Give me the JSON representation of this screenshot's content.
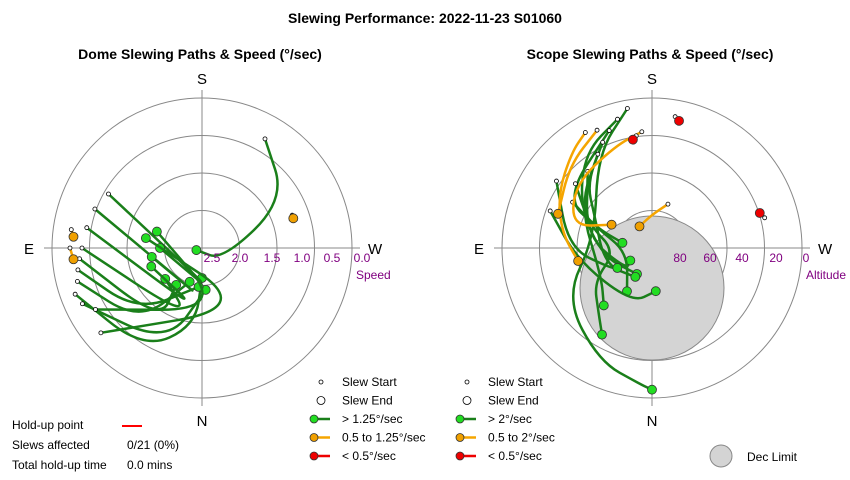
{
  "title": "Slewing Performance: 2022-11-23 S01060",
  "colors": {
    "fast": "#1a7f1a",
    "fast_marker": "#22dd22",
    "medium": "#f5a500",
    "medium_marker": "#f0a000",
    "slow": "#ee0000",
    "holdup": "#ff0000",
    "ring": "#888888",
    "axis_label": "#800080",
    "dec_limit": "#d4d4d4"
  },
  "chart_data": [
    {
      "type": "polar-path",
      "title": "Dome Slewing Paths & Speed (°/sec)",
      "directions": {
        "top": "S",
        "bottom": "N",
        "left": "E",
        "right": "W"
      },
      "radial_label": "Speed",
      "radial_ticks": [
        "2.5",
        "2.0",
        "1.5",
        "1.0",
        "0.5",
        "0.0"
      ],
      "radial_axis": "speed °/sec, 0.0 at outer ring, 2.5 at centre",
      "paths": [
        {
          "class": "fast",
          "points": [
            [
              0.25,
              -110
            ],
            [
              0.55,
              -150
            ],
            [
              1.2,
              -175
            ],
            [
              2.0,
              180
            ]
          ]
        },
        {
          "class": "fast",
          "points": [
            [
              0.3,
              -115
            ],
            [
              0.8,
              -160
            ],
            [
              1.8,
              175
            ]
          ]
        },
        {
          "class": "fast",
          "points": [
            [
              0.35,
              -105
            ],
            [
              0.9,
              -140
            ],
            [
              1.9,
              200
            ]
          ]
        },
        {
          "class": "fast",
          "points": [
            [
              0.4,
              -100
            ],
            [
              1.0,
              -135
            ],
            [
              1.85,
              185
            ]
          ]
        },
        {
          "class": "fast",
          "points": [
            [
              0.45,
              -95
            ],
            [
              1.1,
              -150
            ],
            [
              1.75,
              215
            ]
          ]
        },
        {
          "class": "fast",
          "points": [
            [
              0.5,
              -90
            ],
            [
              1.3,
              -170
            ],
            [
              1.7,
              230
            ]
          ]
        },
        {
          "class": "fast",
          "points": [
            [
              0.55,
              -80
            ],
            [
              1.4,
              -180
            ],
            [
              1.6,
              250
            ]
          ]
        },
        {
          "class": "fast",
          "points": [
            [
              0.6,
              -70
            ],
            [
              1.5,
              -190
            ],
            [
              1.65,
              260
            ]
          ]
        },
        {
          "class": "fast",
          "points": [
            [
              0.7,
              -60
            ],
            [
              1.6,
              -200
            ],
            [
              1.8,
              270
            ]
          ]
        },
        {
          "class": "fast",
          "points": [
            [
              0.3,
              -130
            ],
            [
              1.2,
              -220
            ],
            [
              1.55,
              280
            ]
          ]
        },
        {
          "class": "fast",
          "points": [
            [
              0.45,
              -120
            ],
            [
              1.4,
              -200
            ],
            [
              1.7,
              290
            ]
          ]
        },
        {
          "class": "fast",
          "points": [
            [
              0.4,
              30
            ],
            [
              0.9,
              60
            ],
            [
              2.1,
              120
            ],
            [
              2.4,
              250
            ]
          ]
        },
        {
          "class": "medium",
          "points": [
            [
              0.3,
              -90
            ],
            [
              0.35,
              -95
            ]
          ]
        },
        {
          "class": "medium",
          "points": [
            [
              0.3,
              -82
            ],
            [
              0.35,
              -85
            ]
          ]
        },
        {
          "class": "medium",
          "points": [
            [
              0.9,
              70
            ],
            [
              0.9,
              72
            ]
          ]
        }
      ],
      "holdup": {
        "label": "Hold-up point",
        "slews_affected_label": "Slews affected",
        "slews_affected": "0/21 (0%)",
        "total_label": "Total hold-up time",
        "total": "0.0 mins"
      },
      "legend": [
        {
          "class": "start",
          "label": "Slew Start"
        },
        {
          "class": "end",
          "label": "Slew End"
        },
        {
          "class": "fast",
          "label": "> 1.25°/sec"
        },
        {
          "class": "medium",
          "label": "0.5 to 1.25°/sec"
        },
        {
          "class": "slow",
          "label": "< 0.5°/sec"
        }
      ]
    },
    {
      "type": "polar-path",
      "title": "Scope Slewing Paths & Speed (°/sec)",
      "directions": {
        "top": "S",
        "bottom": "N",
        "left": "E",
        "right": "W"
      },
      "radial_label": "Altitude",
      "radial_ticks": [
        "80",
        "60",
        "40",
        "20",
        "0"
      ],
      "radial_axis": "altitude degrees, 90 at centre, 0 at outer ring",
      "dec_limit": {
        "label": "Dec Limit",
        "center_alt": 66,
        "center_az": 0,
        "radius_deg": 18
      },
      "paths": [
        {
          "class": "fast",
          "points": [
            [
              5,
              -10
            ],
            [
              25,
              -30
            ],
            [
              55,
              -80
            ],
            [
              30,
              -120
            ],
            [
              15,
              -155
            ],
            [
              8,
              -175
            ],
            [
              5,
              180
            ]
          ]
        },
        {
          "class": "fast",
          "points": [
            [
              10,
              -15
            ],
            [
              20,
              -35
            ],
            [
              40,
              -60
            ],
            [
              60,
              -100
            ],
            [
              72,
              -150
            ]
          ]
        },
        {
          "class": "fast",
          "points": [
            [
              15,
              -20
            ],
            [
              30,
              -60
            ],
            [
              55,
              -70
            ],
            [
              72,
              -80
            ]
          ]
        },
        {
          "class": "fast",
          "points": [
            [
              20,
              -25
            ],
            [
              35,
              -45
            ],
            [
              50,
              -60
            ],
            [
              60,
              -110
            ],
            [
              70,
              -150
            ]
          ]
        },
        {
          "class": "fast",
          "points": [
            [
              25,
              -30
            ],
            [
              40,
              -60
            ],
            [
              55,
              -120
            ],
            [
              45,
              -140
            ]
          ]
        },
        {
          "class": "fast",
          "points": [
            [
              30,
              -40
            ],
            [
              50,
              -80
            ],
            [
              70,
              -130
            ],
            [
              75,
              -120
            ]
          ]
        },
        {
          "class": "fast",
          "points": [
            [
              30,
              -50
            ],
            [
              50,
              -70
            ],
            [
              68,
              -95
            ],
            [
              50,
              -120
            ],
            [
              40,
              -140
            ],
            [
              30,
              -150
            ]
          ]
        },
        {
          "class": "fast",
          "points": [
            [
              20,
              -55
            ],
            [
              40,
              -90
            ],
            [
              62,
              -115
            ],
            [
              66,
              -120
            ]
          ]
        },
        {
          "class": "fast",
          "points": [
            [
              35,
              -60
            ],
            [
              55,
              -70
            ],
            [
              75,
              -100
            ],
            [
              60,
              -150
            ]
          ]
        },
        {
          "class": "fast",
          "points": [
            [
              25,
              -70
            ],
            [
              45,
              -100
            ],
            [
              55,
              -160
            ],
            [
              64,
              175
            ]
          ]
        },
        {
          "class": "medium",
          "points": [
            [
              10,
              -30
            ],
            [
              15,
              -40
            ],
            [
              25,
              -60
            ],
            [
              35,
              -80
            ],
            [
              45,
              -100
            ]
          ]
        },
        {
          "class": "medium",
          "points": [
            [
              12,
              -25
            ],
            [
              20,
              -45
            ],
            [
              30,
              -70
            ]
          ]
        },
        {
          "class": "medium",
          "points": [
            [
              20,
              -5
            ],
            [
              25,
              -20
            ],
            [
              30,
              -50
            ],
            [
              40,
              -75
            ],
            [
              62,
              -60
            ]
          ]
        },
        {
          "class": "medium",
          "points": [
            [
              62,
              20
            ],
            [
              70,
              0
            ],
            [
              75,
              -30
            ]
          ]
        },
        {
          "class": "slow",
          "points": [
            [
              22,
              -8
            ],
            [
              24,
              -10
            ]
          ]
        },
        {
          "class": "slow",
          "points": [
            [
              10,
              10
            ],
            [
              12,
              12
            ]
          ]
        },
        {
          "class": "slow",
          "points": [
            [
              20,
              75
            ],
            [
              22,
              72
            ]
          ]
        }
      ],
      "legend": [
        {
          "class": "start",
          "label": "Slew Start"
        },
        {
          "class": "end",
          "label": "Slew End"
        },
        {
          "class": "fast",
          "label": "> 2°/sec"
        },
        {
          "class": "medium",
          "label": "0.5 to 2°/sec"
        },
        {
          "class": "slow",
          "label": "< 0.5°/sec"
        }
      ]
    }
  ]
}
